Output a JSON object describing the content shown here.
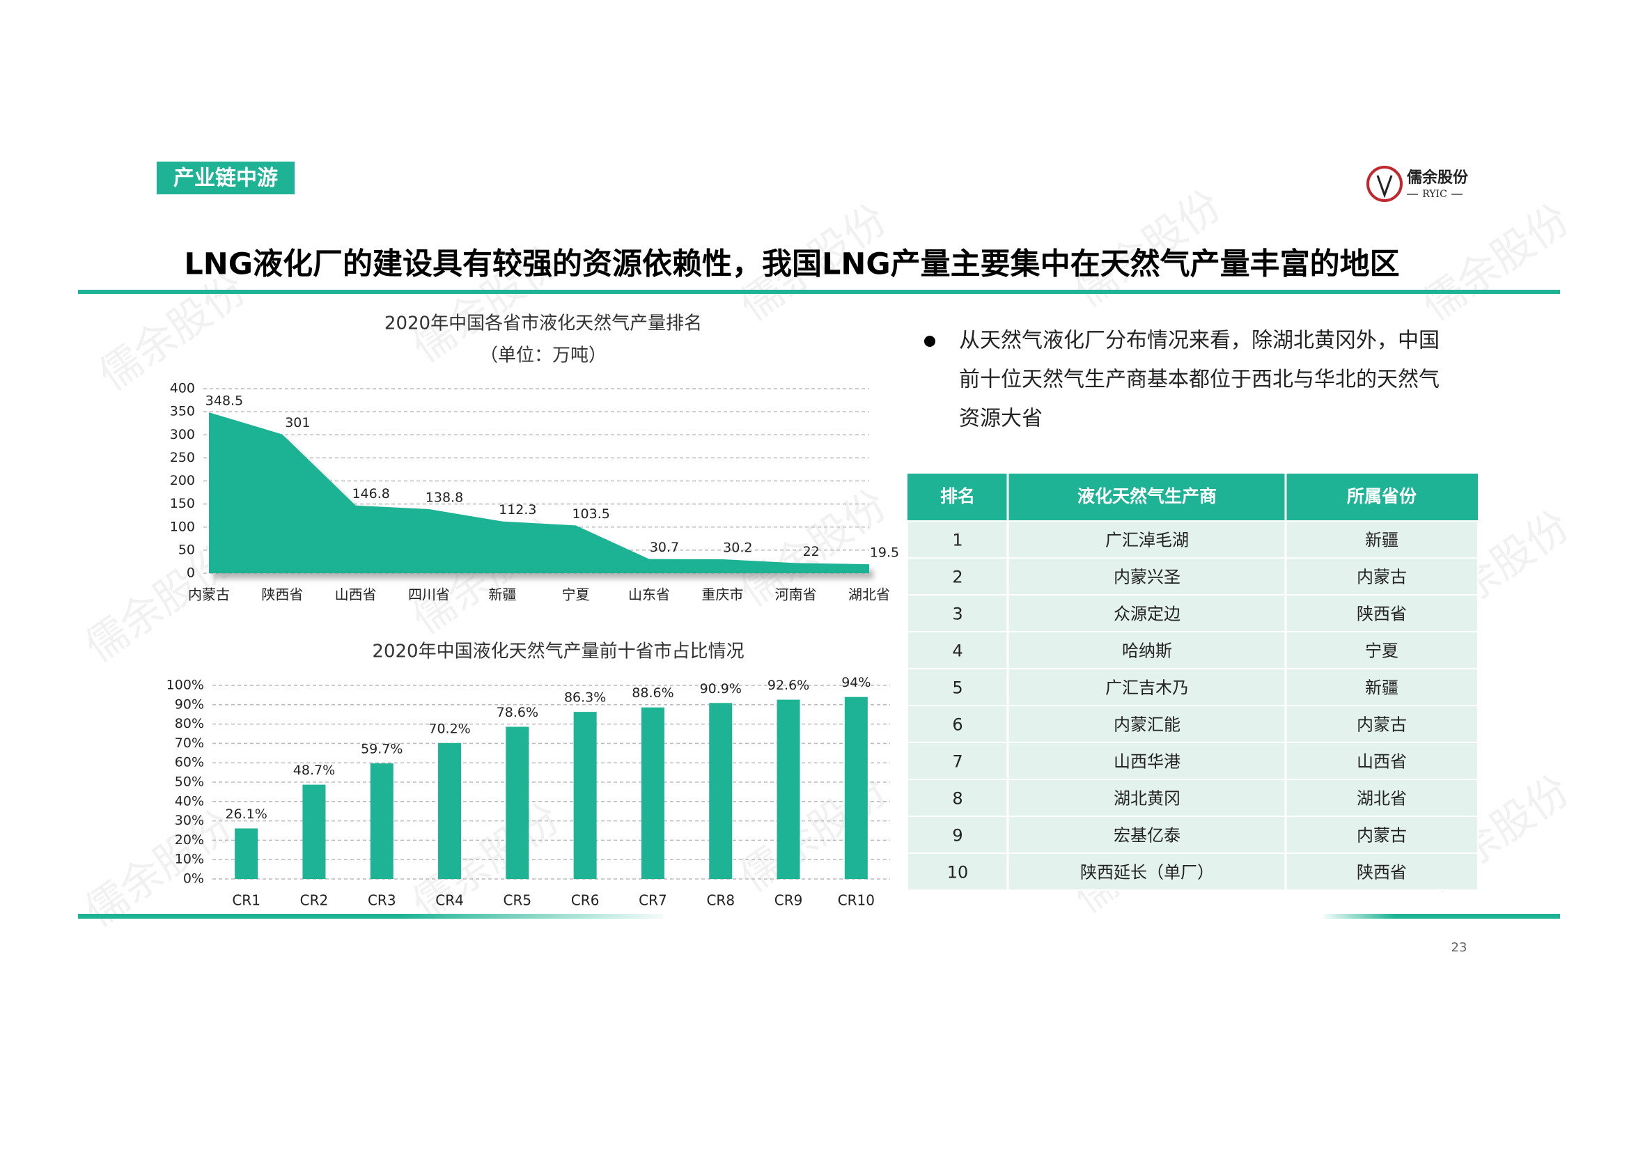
{
  "section_tag": "产业链中游",
  "logo": {
    "name": "儒余股份",
    "sub": "RYIC"
  },
  "title": "LNG液化厂的建设具有较强的资源依赖性，我国LNG产量主要集中在天然气产量丰富的地区",
  "watermark": "儒余股份",
  "chart_data": [
    {
      "type": "area",
      "title": "2020年中国各省市液化天然气产量排名",
      "subtitle": "（单位：万吨）",
      "categories": [
        "内蒙古",
        "陕西省",
        "山西省",
        "四川省",
        "新疆",
        "宁夏",
        "山东省",
        "重庆市",
        "河南省",
        "湖北省"
      ],
      "values": [
        348.5,
        301,
        146.8,
        138.8,
        112.3,
        103.5,
        30.7,
        30.2,
        22,
        19.5
      ],
      "color": "#1db394",
      "ylim": [
        0,
        400
      ],
      "yticks": [
        0,
        50,
        100,
        150,
        200,
        250,
        300,
        350,
        400
      ],
      "grid": true
    },
    {
      "type": "bar",
      "title": "2020年中国液化天然气产量前十省市占比情况",
      "categories": [
        "CR1",
        "CR2",
        "CR3",
        "CR4",
        "CR5",
        "CR6",
        "CR7",
        "CR8",
        "CR9",
        "CR10"
      ],
      "values": [
        26.1,
        48.7,
        59.7,
        70.2,
        78.6,
        86.3,
        88.6,
        90.9,
        92.6,
        94
      ],
      "value_labels": [
        "26.1%",
        "48.7%",
        "59.7%",
        "70.2%",
        "78.6%",
        "86.3%",
        "88.6%",
        "90.9%",
        "92.6%",
        "94%"
      ],
      "color": "#1db394",
      "ylim": [
        0,
        100
      ],
      "yticks": [
        {
          "value": 0,
          "label": "0%"
        },
        {
          "value": 10,
          "label": "10%"
        },
        {
          "value": 20,
          "label": "20%"
        },
        {
          "value": 30,
          "label": "30%"
        },
        {
          "value": 40,
          "label": "40%"
        },
        {
          "value": 50,
          "label": "50%"
        },
        {
          "value": 60,
          "label": "60%"
        },
        {
          "value": 70,
          "label": "70%"
        },
        {
          "value": 80,
          "label": "80%"
        },
        {
          "value": 90,
          "label": "90%"
        },
        {
          "value": 100,
          "label": "100%"
        }
      ],
      "grid": true
    }
  ],
  "bullet": [
    "从天然气液化厂分布情况来看，除湖北黄冈外，中国",
    "前十位天然气生产商基本都位于西北与华北的天然气",
    "资源大省"
  ],
  "table": {
    "header": [
      "排名",
      "液化天然气生产商",
      "所属省份"
    ],
    "rows": [
      [
        1,
        "广汇淖毛湖",
        "新疆"
      ],
      [
        2,
        "内蒙兴圣",
        "内蒙古"
      ],
      [
        3,
        "众源定边",
        "陕西省"
      ],
      [
        4,
        "哈纳斯",
        "宁夏"
      ],
      [
        5,
        "广汇吉木乃",
        "新疆"
      ],
      [
        6,
        "内蒙汇能",
        "内蒙古"
      ],
      [
        7,
        "山西华港",
        "山西省"
      ],
      [
        8,
        "湖北黄冈",
        "湖北省"
      ],
      [
        9,
        "宏基亿泰",
        "内蒙古"
      ],
      [
        10,
        "陕西延长（单厂）",
        "陕西省"
      ]
    ]
  },
  "page_number": 23
}
